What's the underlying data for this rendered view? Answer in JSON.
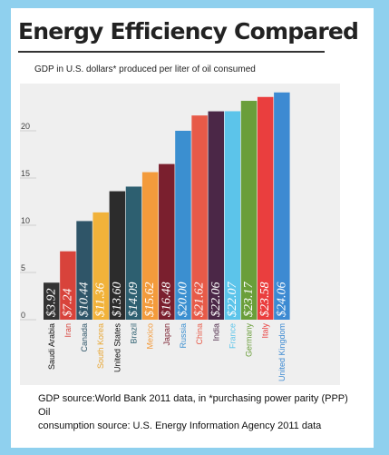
{
  "header": {
    "title": "Energy Efficiency Compared",
    "subtitle": "GDP in U.S. dollars* produced per liter of oil consumed"
  },
  "footer": {
    "line1": "GDP source:World Bank 2011 data, in *purchasing power parity (PPP)  Oil",
    "line2": "consumption source: U.S. Energy Information Agency 2011 data"
  },
  "colors": {
    "page_background": "#8fd0ee",
    "card_background": "#ffffff",
    "chart_background": "#efefef"
  },
  "chart_data": {
    "type": "bar",
    "title": "Energy Efficiency Compared",
    "subtitle": "GDP in U.S. dollars* produced per liter of oil consumed",
    "xlabel": "",
    "ylabel": "",
    "ylim": [
      0,
      25
    ],
    "yticks": [
      0,
      5,
      10,
      15,
      20
    ],
    "grid": false,
    "legend": "none",
    "categories": [
      "Saudi Arabia",
      "Iran",
      "Canada",
      "South Korea",
      "United States",
      "Brazil",
      "Mexico",
      "Japan",
      "Russia",
      "China",
      "India",
      "France",
      "Germany",
      "Italy",
      "United Kingdom"
    ],
    "values": [
      3.92,
      7.24,
      10.44,
      11.36,
      13.6,
      14.09,
      15.62,
      16.48,
      20.0,
      21.62,
      22.06,
      22.07,
      23.17,
      23.58,
      24.06
    ],
    "value_labels": [
      "$3.92",
      "$7.24",
      "$10.44",
      "$11.36",
      "$13.60",
      "$14.09",
      "$15.62",
      "$16.48",
      "$20.00",
      "$21.62",
      "$22.06",
      "$22.07",
      "$23.17",
      "$23.58",
      "$24.06"
    ],
    "bar_colors": [
      "#333333",
      "#d8433b",
      "#2f5568",
      "#f1b23a",
      "#2c2c2c",
      "#2d5f70",
      "#f39b3c",
      "#7a1f2e",
      "#3b8fd0",
      "#e75a48",
      "#4b2747",
      "#5cc4ea",
      "#6a9e3a",
      "#ea3e3e",
      "#3d8ad2"
    ],
    "label_colors": [
      "#111111",
      "#d8433b",
      "#2f5568",
      "#e8a530",
      "#111111",
      "#2d5f70",
      "#f39b3c",
      "#7a1f2e",
      "#3b8fd0",
      "#e75a48",
      "#4b2747",
      "#5cc4ea",
      "#6a9e3a",
      "#ea3e3e",
      "#3d8ad2"
    ]
  }
}
